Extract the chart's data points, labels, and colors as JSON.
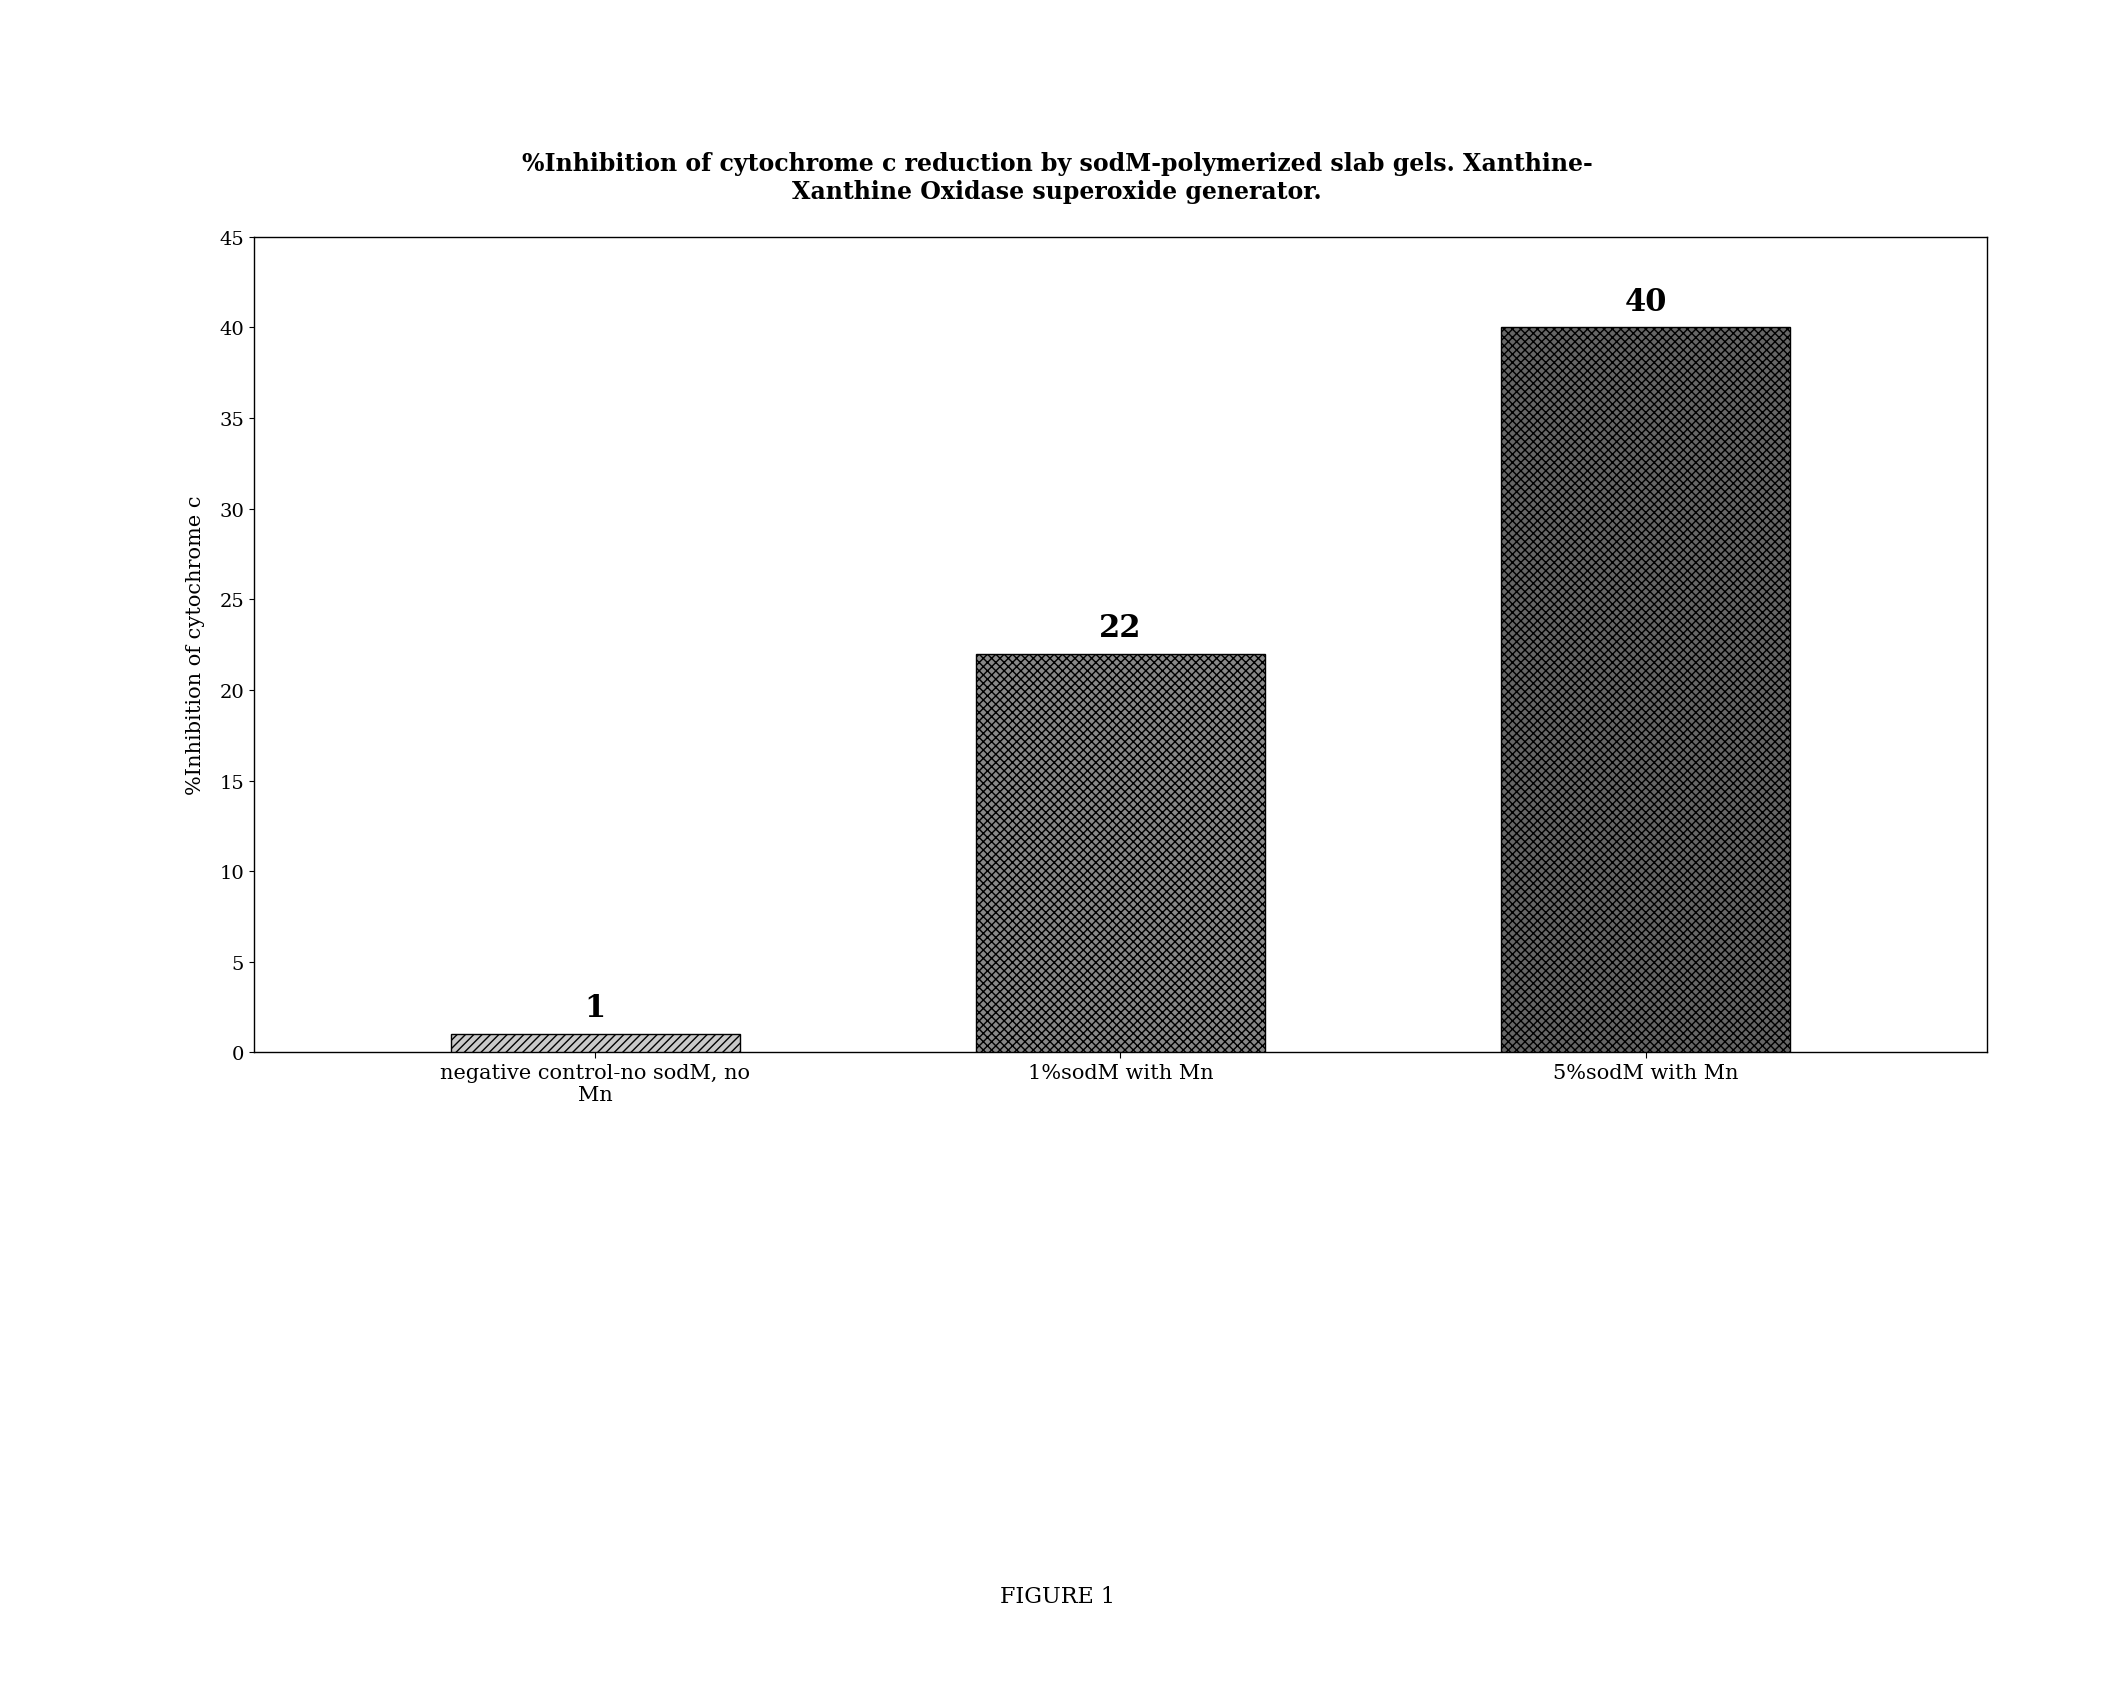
{
  "title_line1": "%Inhibition of cytochrome c reduction by sodM-polymerized slab gels. Xanthine-",
  "title_line2": "Xanthine Oxidase superoxide generator.",
  "categories": [
    "negative control-no sodM, no\nMn",
    "1%sodM with Mn",
    "5%sodM with Mn"
  ],
  "values": [
    1,
    22,
    40
  ],
  "bar_labels": [
    "1",
    "22",
    "40"
  ],
  "ylabel": "%Inhibition of cytochrome c",
  "ylim": [
    0,
    45
  ],
  "yticks": [
    0,
    5,
    10,
    15,
    20,
    25,
    30,
    35,
    40,
    45
  ],
  "figure_caption": "FIGURE 1",
  "background_color": "#ffffff",
  "title_fontsize": 17,
  "label_fontsize": 15,
  "tick_fontsize": 14,
  "bar_label_fontsize": 22,
  "caption_fontsize": 16,
  "ylabel_fontsize": 15
}
